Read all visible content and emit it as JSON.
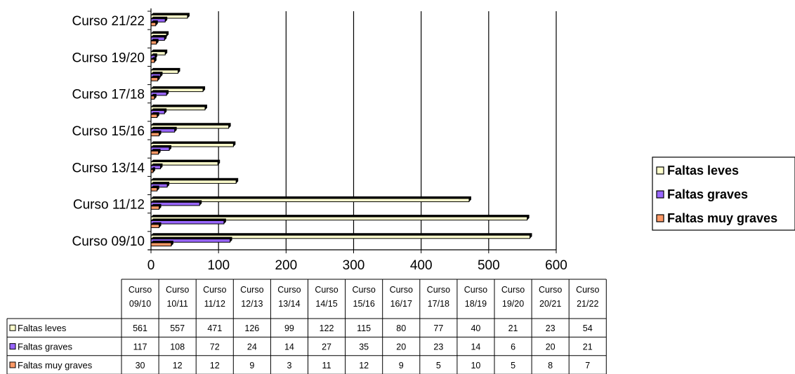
{
  "chart_data": {
    "type": "bar",
    "orientation": "horizontal",
    "categories": [
      "Curso 09/10",
      "Curso 10/11",
      "Curso 11/12",
      "Curso 12/13",
      "Curso 13/14",
      "Curso 14/15",
      "Curso 15/16",
      "Curso 16/17",
      "Curso 17/18",
      "Curso 18/19",
      "Curso 19/20",
      "Curso 20/21",
      "Curso 21/22"
    ],
    "table_headers": [
      [
        "Curso",
        "09/10"
      ],
      [
        "Curso",
        "10/11"
      ],
      [
        "Curso",
        "11/12"
      ],
      [
        "Curso",
        "12/13"
      ],
      [
        "Curso",
        "13/14"
      ],
      [
        "Curso",
        "14/15"
      ],
      [
        "Curso",
        "15/16"
      ],
      [
        "Curso",
        "16/17"
      ],
      [
        "Curso",
        "17/18"
      ],
      [
        "Curso",
        "18/19"
      ],
      [
        "Curso",
        "19/20"
      ],
      [
        "Curso",
        "20/21"
      ],
      [
        "Curso",
        "21/22"
      ]
    ],
    "series": [
      {
        "name": "Faltas leves",
        "color": "#FFFFCC",
        "values": [
          561,
          557,
          471,
          126,
          99,
          122,
          115,
          80,
          77,
          40,
          21,
          23,
          54
        ]
      },
      {
        "name": "Faltas graves",
        "color": "#9966FF",
        "values": [
          117,
          108,
          72,
          24,
          14,
          27,
          35,
          20,
          23,
          14,
          6,
          20,
          21
        ]
      },
      {
        "name": "Faltas muy graves",
        "color": "#FF9966",
        "values": [
          30,
          12,
          12,
          9,
          3,
          11,
          12,
          9,
          5,
          10,
          5,
          8,
          7
        ]
      }
    ],
    "axis_labels_shown": [
      "Curso 09/10",
      "Curso 11/12",
      "Curso 13/14",
      "Curso 15/16",
      "Curso 17/18",
      "Curso 19/20",
      "Curso 21/22"
    ],
    "xticks": [
      0,
      100,
      200,
      300,
      400,
      500,
      600
    ],
    "xlim": [
      0,
      600
    ],
    "grid": true,
    "legend_position": "right",
    "has_data_table": true
  }
}
